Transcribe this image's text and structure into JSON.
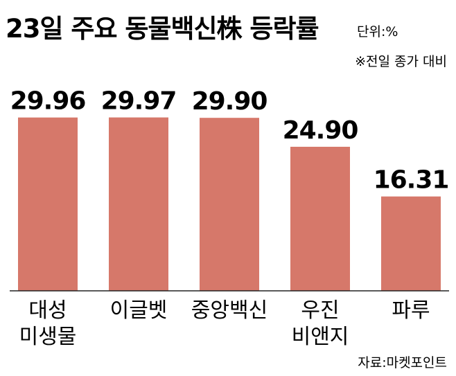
{
  "title": "23일 주요 동물백신株 등락률",
  "unit": "단위:%",
  "note": "※전일 종가 대비",
  "source": "자료:마켓포인트",
  "bar_color": "#d6786a",
  "chart_data": {
    "type": "bar",
    "title": "23일 주요 동물백신株 등락률",
    "categories": [
      [
        "대성",
        "미생물"
      ],
      [
        "이글벳"
      ],
      [
        "중앙백신"
      ],
      [
        "우진",
        "비앤지"
      ],
      [
        "파루"
      ]
    ],
    "values": [
      29.96,
      29.97,
      29.9,
      24.9,
      16.31
    ],
    "value_labels": [
      "29.96",
      "29.97",
      "29.90",
      "24.90",
      "16.31"
    ],
    "ylim": [
      0,
      38.3
    ],
    "xlabel": "",
    "ylabel": "",
    "grid": false,
    "legend": "none"
  }
}
